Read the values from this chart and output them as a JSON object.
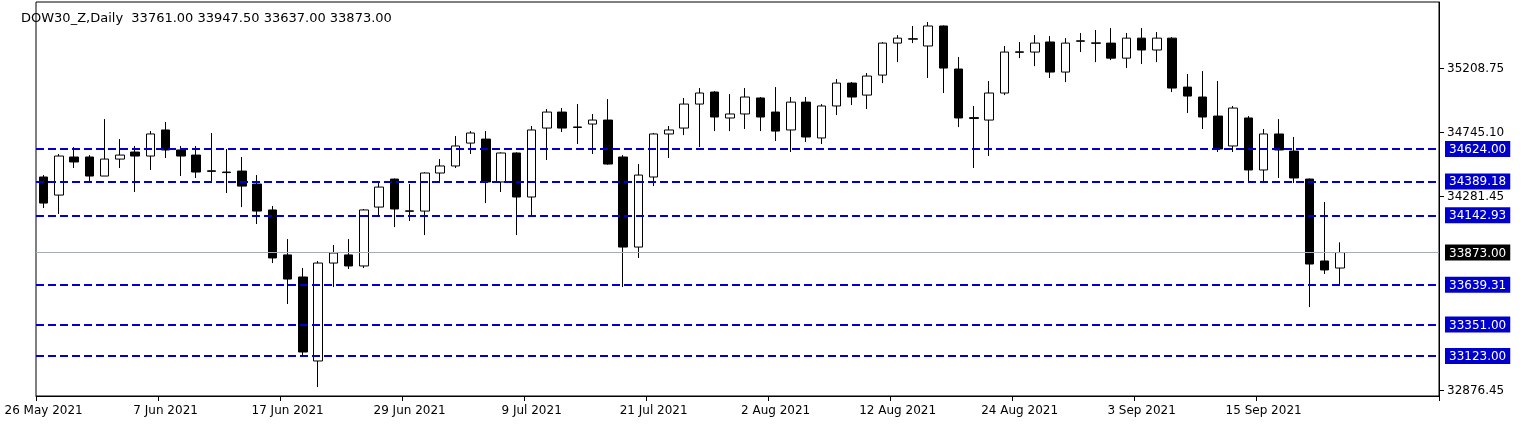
{
  "chart_data": {
    "type": "candlestick",
    "title": "DOW30_Z,Daily  33761.00 33947.50 33637.00 33873.00",
    "categories": [
      "26 May 2021",
      null,
      null,
      null,
      null,
      null,
      null,
      null,
      "7 Jun 2021",
      null,
      null,
      null,
      null,
      null,
      null,
      null,
      "17 Jun 2021",
      null,
      null,
      null,
      null,
      null,
      null,
      null,
      "29 Jun 2021",
      null,
      null,
      null,
      null,
      null,
      null,
      null,
      "9 Jul 2021",
      null,
      null,
      null,
      null,
      null,
      null,
      null,
      "21 Jul 2021",
      null,
      null,
      null,
      null,
      null,
      null,
      null,
      "2 Aug 2021",
      null,
      null,
      null,
      null,
      null,
      null,
      null,
      "12 Aug 2021",
      null,
      null,
      null,
      null,
      null,
      null,
      null,
      "24 Aug 2021",
      null,
      null,
      null,
      null,
      null,
      null,
      null,
      "3 Sep 2021",
      null,
      null,
      null,
      null,
      null,
      null,
      null,
      "15 Sep 2021",
      null,
      null,
      null,
      null,
      null,
      null,
      null,
      null,
      null,
      null,
      null
    ],
    "ohlc": [
      [
        34421,
        34435,
        34196,
        34232
      ],
      [
        34290,
        34588,
        34153,
        34573
      ],
      [
        34566,
        34638,
        34486,
        34530
      ],
      [
        34566,
        34580,
        34392,
        34428
      ],
      [
        34428,
        34841,
        34428,
        34551
      ],
      [
        34551,
        34696,
        34486,
        34580
      ],
      [
        34602,
        34646,
        34312,
        34573
      ],
      [
        34573,
        34754,
        34472,
        34733
      ],
      [
        34762,
        34820,
        34559,
        34617
      ],
      [
        34617,
        34646,
        34428,
        34573
      ],
      [
        34580,
        34646,
        34414,
        34457
      ],
      [
        34466,
        34740,
        34392,
        34462
      ],
      [
        34457,
        34624,
        34305,
        34453
      ],
      [
        34464,
        34566,
        34203,
        34355
      ],
      [
        34370,
        34435,
        34080,
        34174
      ],
      [
        34182,
        34211,
        33797,
        33834
      ],
      [
        33856,
        33971,
        33500,
        33681
      ],
      [
        33696,
        33761,
        33130,
        33152
      ],
      [
        33087,
        33812,
        32898,
        33797
      ],
      [
        33797,
        33928,
        33623,
        33870
      ],
      [
        33856,
        33971,
        33754,
        33776
      ],
      [
        33776,
        34189,
        33761,
        34182
      ],
      [
        34203,
        34385,
        34131,
        34348
      ],
      [
        34406,
        34410,
        34058,
        34189
      ],
      [
        34172,
        34370,
        34102,
        34176
      ],
      [
        34174,
        34455,
        34000,
        34450
      ],
      [
        34450,
        34551,
        34377,
        34501
      ],
      [
        34501,
        34718,
        34486,
        34646
      ],
      [
        34667,
        34754,
        34588,
        34740
      ],
      [
        34696,
        34754,
        34232,
        34385
      ],
      [
        34385,
        34600,
        34312,
        34595
      ],
      [
        34595,
        34600,
        34000,
        34276
      ],
      [
        34276,
        34791,
        34131,
        34762
      ],
      [
        34776,
        34914,
        34544,
        34892
      ],
      [
        34892,
        34921,
        34747,
        34776
      ],
      [
        34784,
        34950,
        34660,
        34780
      ],
      [
        34805,
        34878,
        34588,
        34834
      ],
      [
        34834,
        34986,
        34510,
        34515
      ],
      [
        34566,
        34580,
        33623,
        33913
      ],
      [
        33913,
        34515,
        33834,
        34435
      ],
      [
        34421,
        34740,
        34355,
        34733
      ],
      [
        34733,
        34791,
        34559,
        34762
      ],
      [
        34776,
        34994,
        34725,
        34950
      ],
      [
        34950,
        35066,
        34638,
        35030
      ],
      [
        35037,
        35044,
        34754,
        34856
      ],
      [
        34849,
        35022,
        34754,
        34878
      ],
      [
        34878,
        35066,
        34769,
        35001
      ],
      [
        34994,
        35001,
        34754,
        34856
      ],
      [
        34892,
        35073,
        34682,
        34754
      ],
      [
        34762,
        35001,
        34602,
        34964
      ],
      [
        34964,
        35001,
        34675,
        34711
      ],
      [
        34704,
        34950,
        34660,
        34936
      ],
      [
        34936,
        35131,
        34870,
        35102
      ],
      [
        35102,
        35110,
        34943,
        35001
      ],
      [
        35015,
        35175,
        34914,
        35153
      ],
      [
        35160,
        35400,
        35102,
        35392
      ],
      [
        35392,
        35450,
        35254,
        35428
      ],
      [
        35420,
        35516,
        35392,
        35424
      ],
      [
        35371,
        35545,
        35139,
        35516
      ],
      [
        35516,
        35520,
        35030,
        35211
      ],
      [
        35204,
        35291,
        34783,
        34849
      ],
      [
        34845,
        34936,
        34486,
        34852
      ],
      [
        34834,
        35117,
        34573,
        35030
      ],
      [
        35030,
        35371,
        35015,
        35327
      ],
      [
        35325,
        35400,
        35283,
        35329
      ],
      [
        35327,
        35450,
        35225,
        35392
      ],
      [
        35400,
        35443,
        35139,
        35182
      ],
      [
        35182,
        35428,
        35109,
        35392
      ],
      [
        35405,
        35465,
        35327,
        35409
      ],
      [
        35390,
        35487,
        35254,
        35394
      ],
      [
        35392,
        35501,
        35269,
        35283
      ],
      [
        35283,
        35465,
        35211,
        35428
      ],
      [
        35428,
        35501,
        35240,
        35342
      ],
      [
        35342,
        35472,
        35254,
        35428
      ],
      [
        35428,
        35435,
        35037,
        35066
      ],
      [
        35073,
        35168,
        34885,
        35008
      ],
      [
        35001,
        35189,
        34769,
        34856
      ],
      [
        34863,
        35117,
        34602,
        34624
      ],
      [
        34646,
        34936,
        34602,
        34921
      ],
      [
        34849,
        34863,
        34385,
        34472
      ],
      [
        34472,
        34769,
        34377,
        34733
      ],
      [
        34733,
        34841,
        34414,
        34617
      ],
      [
        34609,
        34711,
        34377,
        34414
      ],
      [
        34406,
        34410,
        33478,
        33790
      ],
      [
        33812,
        34240,
        33718,
        33747
      ],
      [
        33761,
        33947.5,
        33637,
        33873
      ],
      null,
      null,
      null,
      null,
      null,
      null
    ],
    "ylim": [
      32833,
      35690
    ],
    "yticks": [
      {
        "value": 35208.75,
        "label": "35208.75"
      },
      {
        "value": 34745.1,
        "label": "34745.10"
      },
      {
        "value": 34281.45,
        "label": "34281.45"
      },
      {
        "value": 32876.45,
        "label": "32876.45"
      }
    ],
    "ref_lines": [
      {
        "axis": "y",
        "value": 34624,
        "label": "34624.00",
        "color": "#0000cc",
        "line_style": "dashed"
      },
      {
        "axis": "y",
        "value": 34389.18,
        "label": "34389.18",
        "color": "#0000cc",
        "line_style": "dashed"
      },
      {
        "axis": "y",
        "value": 34142.93,
        "label": "34142.93",
        "color": "#0000cc",
        "line_style": "dashed"
      },
      {
        "axis": "y",
        "value": 33873,
        "label": "33873.00",
        "color": "#a4acb8",
        "line_style": "solid"
      },
      {
        "axis": "y",
        "value": 33639.31,
        "label": "33639.31",
        "color": "#0000cc",
        "line_style": "dashed"
      },
      {
        "axis": "y",
        "value": 33351,
        "label": "33351.00",
        "color": "#0000cc",
        "line_style": "dashed"
      },
      {
        "axis": "y",
        "value": 33123,
        "label": "33123.00",
        "color": "#0000cc",
        "line_style": "dashed"
      }
    ]
  }
}
